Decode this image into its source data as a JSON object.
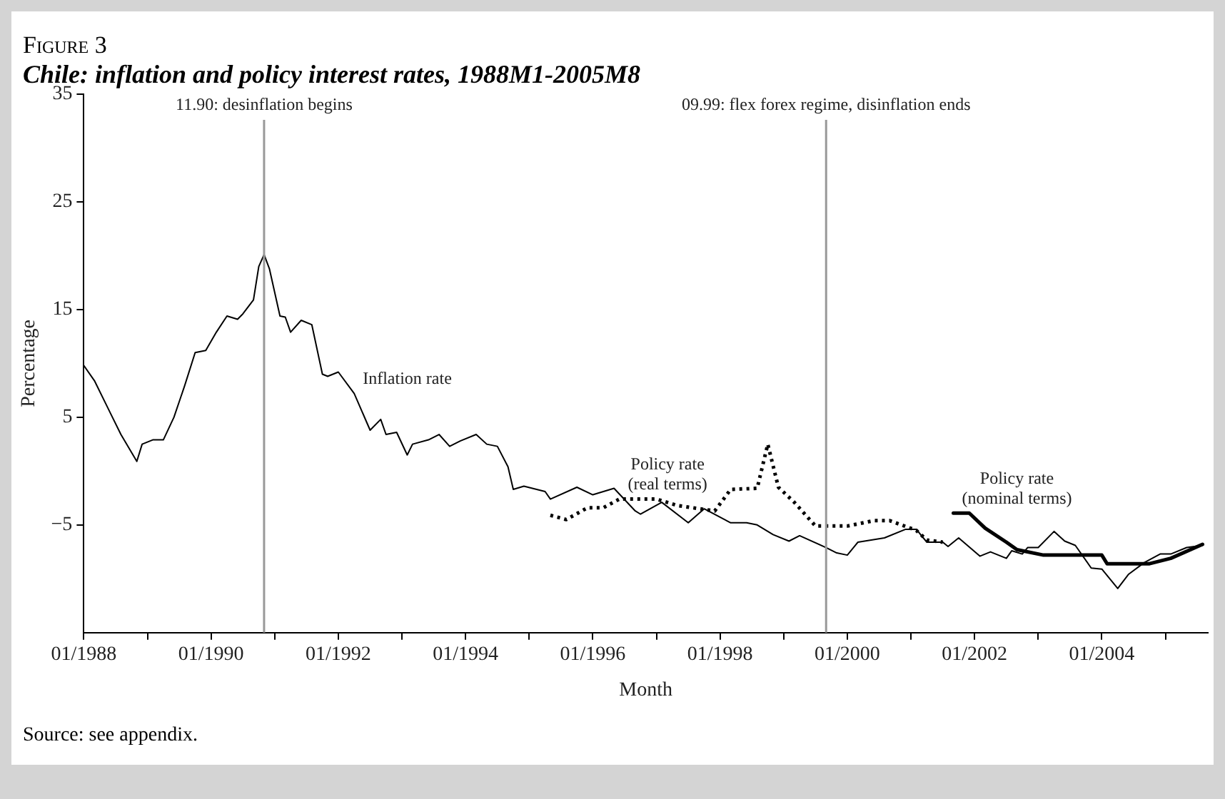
{
  "chart_data": {
    "type": "line",
    "title": "Figure 3",
    "subtitle": "Chile: inflation and policy interest rates, 1988M1-2005M8",
    "xlabel": "Month",
    "ylabel": "Percentage",
    "xlim": [
      "1988-01",
      "2005-09"
    ],
    "xticks": [
      {
        "value": "1988-01",
        "label": "01/1988"
      },
      {
        "value": "1989-01",
        "label": null
      },
      {
        "value": "1990-01",
        "label": "01/1990"
      },
      {
        "value": "1991-01",
        "label": null
      },
      {
        "value": "1992-01",
        "label": "01/1992"
      },
      {
        "value": "1993-01",
        "label": null
      },
      {
        "value": "1994-01",
        "label": "01/1994"
      },
      {
        "value": "1995-01",
        "label": null
      },
      {
        "value": "1996-01",
        "label": "01/1996"
      },
      {
        "value": "1997-01",
        "label": null
      },
      {
        "value": "1998-01",
        "label": "01/1998"
      },
      {
        "value": "1999-01",
        "label": null
      },
      {
        "value": "2000-01",
        "label": "01/2000"
      },
      {
        "value": "2001-01",
        "label": null
      },
      {
        "value": "2002-01",
        "label": "01/2002"
      },
      {
        "value": "2003-01",
        "label": null
      },
      {
        "value": "2004-01",
        "label": "01/2004"
      },
      {
        "value": "2005-01",
        "label": null
      }
    ],
    "ylim": [
      -15,
      35
    ],
    "yticks": [
      -5,
      5,
      15,
      25,
      35
    ],
    "grid": false,
    "legend": false,
    "marker": "none",
    "series": [
      {
        "color": "#000000",
        "line_style": "solid",
        "x": [
          "1988-01",
          "1988-03",
          "1988-06",
          "1988-08",
          "1988-11",
          "1988-12",
          "1989-02",
          "1989-04",
          "1989-06",
          "1989-08",
          "1989-10",
          "1989-12",
          "1990-02",
          "1990-04",
          "1990-06",
          "1990-07",
          "1990-09",
          "1990-10",
          "1990-11",
          "1990-12",
          "1991-02",
          "1991-03",
          "1991-04",
          "1991-06",
          "1991-08",
          "1991-10",
          "1991-11",
          "1992-01",
          "1992-04",
          "1992-07",
          "1992-09",
          "1992-10",
          "1992-12",
          "1993-02",
          "1993-03",
          "1993-06",
          "1993-08",
          "1993-10",
          "1993-12",
          "1994-03",
          "1994-05",
          "1994-07",
          "1994-09",
          "1994-10",
          "1994-12",
          "1995-04",
          "1995-05",
          "1995-10",
          "1996-01",
          "1996-05",
          "1996-09",
          "1996-10",
          "1997-02",
          "1997-07",
          "1997-10",
          "1998-03",
          "1998-06",
          "1998-08",
          "1998-11",
          "1999-02",
          "1999-04",
          "1999-09",
          "1999-11",
          "2000-01",
          "2000-03",
          "2000-08",
          "2000-12",
          "2001-02",
          "2001-04",
          "2001-07",
          "2001-08",
          "2001-10",
          "2002-02",
          "2002-04",
          "2002-07",
          "2002-08",
          "2002-10",
          "2002-11",
          "2003-01",
          "2003-04",
          "2003-06",
          "2003-08",
          "2003-11",
          "2004-01",
          "2004-04",
          "2004-06",
          "2004-09",
          "2004-12",
          "2005-02",
          "2005-05",
          "2005-08"
        ],
        "values": [
          9.8,
          8.4,
          5.4,
          3.4,
          0.9,
          2.5,
          2.9,
          2.9,
          5,
          7.9,
          11,
          11.2,
          12.9,
          14.4,
          14.1,
          14.6,
          15.9,
          19,
          20.1,
          18.8,
          14.4,
          14.3,
          12.9,
          14,
          13.6,
          9,
          8.8,
          9.2,
          7.2,
          3.8,
          4.8,
          3.4,
          3.6,
          1.5,
          2.5,
          2.9,
          3.4,
          2.3,
          2.8,
          3.4,
          2.5,
          2.3,
          0.4,
          -1.7,
          -1.4,
          -1.9,
          -2.6,
          -1.5,
          -2.2,
          -1.6,
          -3.7,
          -4,
          -2.9,
          -4.8,
          -3.5,
          -4.8,
          -4.8,
          -5,
          -5.9,
          -6.5,
          -6,
          -7.1,
          -7.6,
          -7.8,
          -6.6,
          -6.2,
          -5.4,
          -5.4,
          -6.6,
          -6.6,
          -7,
          -6.2,
          -7.9,
          -7.5,
          -8.1,
          -7.4,
          -7.7,
          -7.1,
          -7.1,
          -5.6,
          -6.5,
          -6.9,
          -9,
          -9.1,
          -10.9,
          -9.6,
          -8.5,
          -7.7,
          -7.7,
          -7.1,
          -6.9
        ]
      },
      {
        "color": "#000000",
        "line_style": "dotted",
        "x": [
          "1995-05",
          "1995-08",
          "1995-12",
          "1996-03",
          "1996-06",
          "1997-01",
          "1997-05",
          "1997-12",
          "1998-03",
          "1998-08",
          "1998-10",
          "1998-12",
          "1999-03",
          "1999-07",
          "2000-01",
          "2000-06",
          "2000-09",
          "2001-02",
          "2001-04",
          "2001-07"
        ],
        "values": [
          -4.1,
          -4.5,
          -3.4,
          -3.4,
          -2.6,
          -2.6,
          -3.2,
          -3.7,
          -1.7,
          -1.6,
          2.5,
          -1.5,
          -2.9,
          -5.1,
          -5.1,
          -4.6,
          -4.6,
          -5.5,
          -6.4,
          -6.6
        ]
      },
      {
        "color": "#000000",
        "line_style": "solid",
        "x": [
          "2001-09",
          "2001-12",
          "2002-03",
          "2002-07",
          "2002-09",
          "2003-02",
          "2004-01",
          "2004-02",
          "2004-10",
          "2005-02",
          "2005-08"
        ],
        "values": [
          -3.9,
          -3.9,
          -5.3,
          -6.6,
          -7.3,
          -7.8,
          -7.8,
          -8.6,
          -8.6,
          -8.1,
          -6.8
        ]
      }
    ],
    "ref_lines": [
      {
        "axis": "x",
        "value": "1990-11",
        "label": "11.90: desinflation begins",
        "color": "#999999"
      },
      {
        "axis": "x",
        "value": "1999-09",
        "label": "09.99: flex forex regime, disinflation ends",
        "color": "#999999"
      }
    ],
    "annotations": [
      {
        "text": "Inflation rate",
        "x": "1992-04",
        "y": 7.2
      },
      {
        "text": "Policy rate\n(real terms)",
        "x": "1996-06",
        "y": -2.6
      },
      {
        "text": "Policy rate\n(nominal terms)",
        "x": "2001-09",
        "y": -3.9
      },
      "Source: see appendix."
    ]
  }
}
